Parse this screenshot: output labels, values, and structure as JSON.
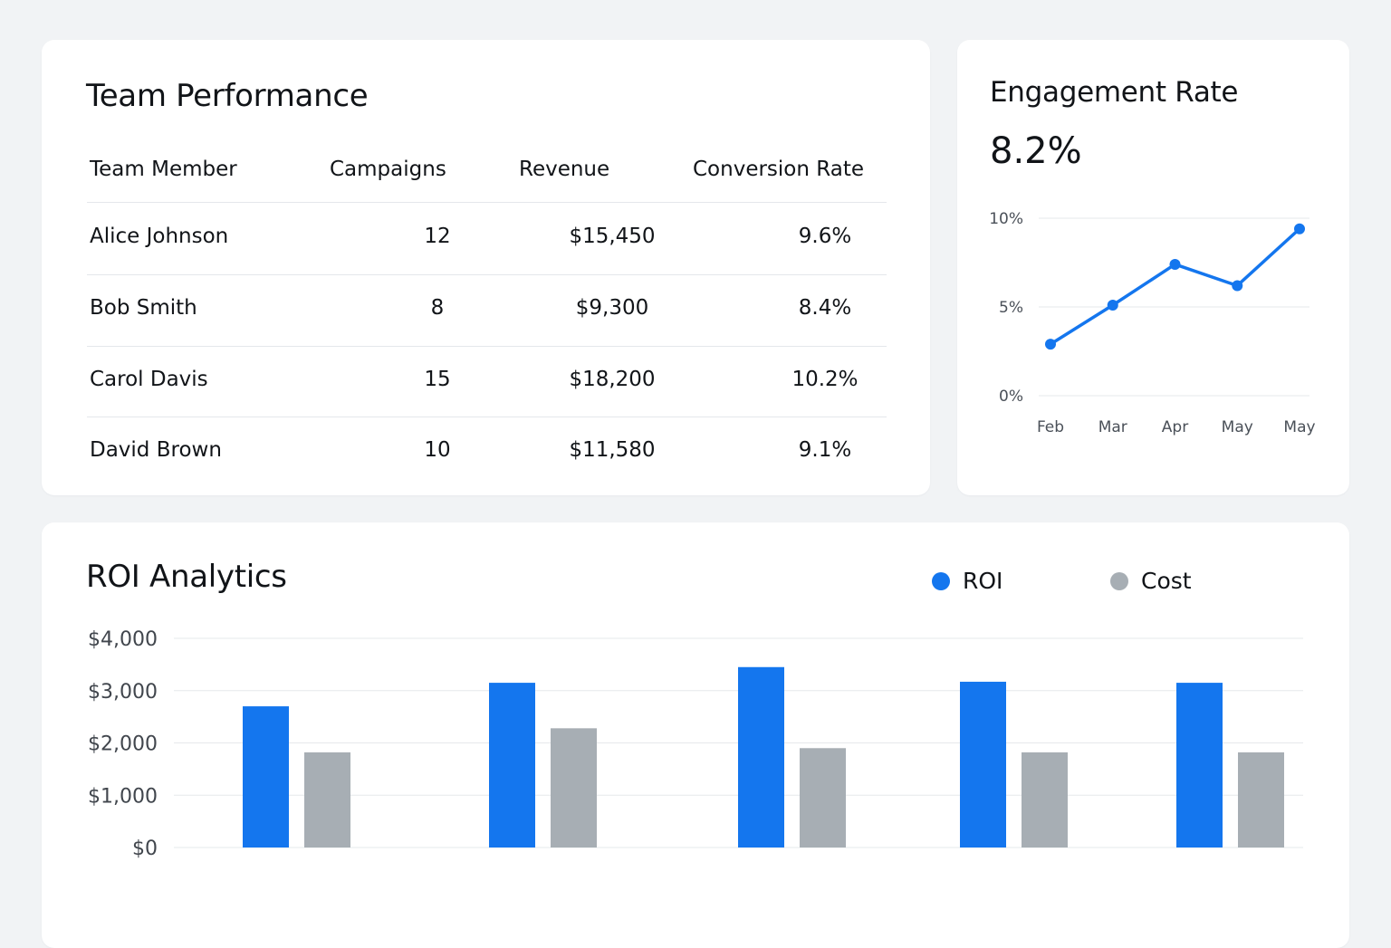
{
  "colors": {
    "accent": "#1476ee",
    "cost": "#a7aeb4",
    "gridline": "#e6e8eb"
  },
  "team": {
    "title": "Team Performance",
    "headers": [
      "Team Member",
      "Campaigns",
      "Revenue",
      "Conversion Rate"
    ],
    "rows": [
      {
        "member": "Alice Johnson",
        "campaigns": "12",
        "revenue": "$15,450",
        "conversion": "9.6%"
      },
      {
        "member": "Bob Smith",
        "campaigns": "8",
        "revenue": "$9,300",
        "conversion": "8.4%"
      },
      {
        "member": "Carol Davis",
        "campaigns": "15",
        "revenue": "$18,200",
        "conversion": "10.2%"
      },
      {
        "member": "David Brown",
        "campaigns": "10",
        "revenue": "$11,580",
        "conversion": "9.1%"
      }
    ]
  },
  "engagement": {
    "title": "Engagement Rate",
    "value": "8.2%"
  },
  "roi": {
    "title": "ROI Analytics",
    "legend": {
      "roi": "ROI",
      "cost": "Cost"
    }
  },
  "chart_data": [
    {
      "type": "line",
      "x": [
        "Feb",
        "Mar",
        "Apr",
        "May",
        "May"
      ],
      "series": [
        {
          "values": [
            2.9,
            5.1,
            7.4,
            6.2,
            9.4
          ]
        }
      ],
      "ylim": [
        0,
        10
      ],
      "yticks": [
        "0%",
        "5%",
        "10%"
      ],
      "grid": true
    },
    {
      "type": "bar",
      "categories": [
        "",
        "",
        "",
        "",
        ""
      ],
      "series": [
        {
          "name": "ROI",
          "values": [
            2700,
            3150,
            3450,
            3170,
            3150
          ]
        },
        {
          "name": "Cost",
          "values": [
            1820,
            2280,
            1900,
            1820,
            1820
          ]
        }
      ],
      "ylim": [
        0,
        4000
      ],
      "yticks": [
        "$0",
        "$1,000",
        "$2,000",
        "$3,000",
        "$4,000"
      ],
      "legend": "top-right",
      "grid": true
    }
  ]
}
